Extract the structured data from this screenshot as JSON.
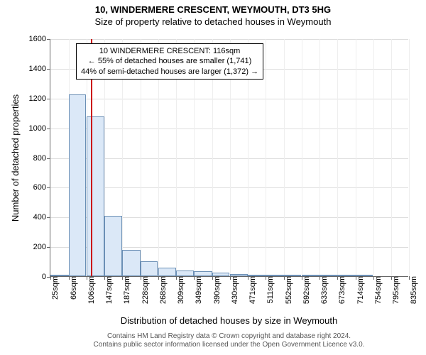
{
  "titles": {
    "line1": "10, WINDERMERE CRESCENT, WEYMOUTH, DT3 5HG",
    "line2": "Size of property relative to detached houses in Weymouth"
  },
  "axes": {
    "ylabel": "Number of detached properties",
    "xlabel": "Distribution of detached houses by size in Weymouth",
    "ylim": [
      0,
      1600
    ],
    "yticks": [
      0,
      200,
      400,
      600,
      800,
      1000,
      1200,
      1400,
      1600
    ],
    "label_fontsize": 13,
    "tick_fontsize": 11
  },
  "histogram": {
    "type": "histogram",
    "bin_edges_sqm": [
      25,
      66,
      106,
      147,
      187,
      228,
      268,
      309,
      349,
      390,
      430,
      471,
      511,
      552,
      592,
      633,
      673,
      714,
      754,
      795,
      835
    ],
    "counts": [
      5,
      1225,
      1075,
      405,
      175,
      100,
      55,
      40,
      35,
      22,
      15,
      8,
      5,
      3,
      2,
      1,
      1,
      1,
      0,
      0
    ],
    "bar_fill": "#dbe8f7",
    "bar_stroke": "#6b8fb5",
    "background_color": "#ffffff",
    "grid_color_h": "#dddddd",
    "grid_color_v": "#eeeeee",
    "xtick_labels": [
      "25sqm",
      "66sqm",
      "106sqm",
      "147sqm",
      "187sqm",
      "228sqm",
      "268sqm",
      "309sqm",
      "349sqm",
      "390sqm",
      "430sqm",
      "471sqm",
      "511sqm",
      "552sqm",
      "592sqm",
      "633sqm",
      "673sqm",
      "714sqm",
      "754sqm",
      "795sqm",
      "835sqm"
    ]
  },
  "reference": {
    "value_sqm": 116,
    "line_color": "#cc0000",
    "annotation": {
      "lines": [
        "10 WINDERMERE CRESCENT: 116sqm",
        "← 55% of detached houses are smaller (1,741)",
        "44% of semi-detached houses are larger (1,372) →"
      ],
      "border_color": "#000000",
      "font_size": 11
    }
  },
  "credit": {
    "line1": "Contains HM Land Registry data © Crown copyright and database right 2024.",
    "line2": "Contains public sector information licensed under the Open Government Licence v3.0."
  }
}
